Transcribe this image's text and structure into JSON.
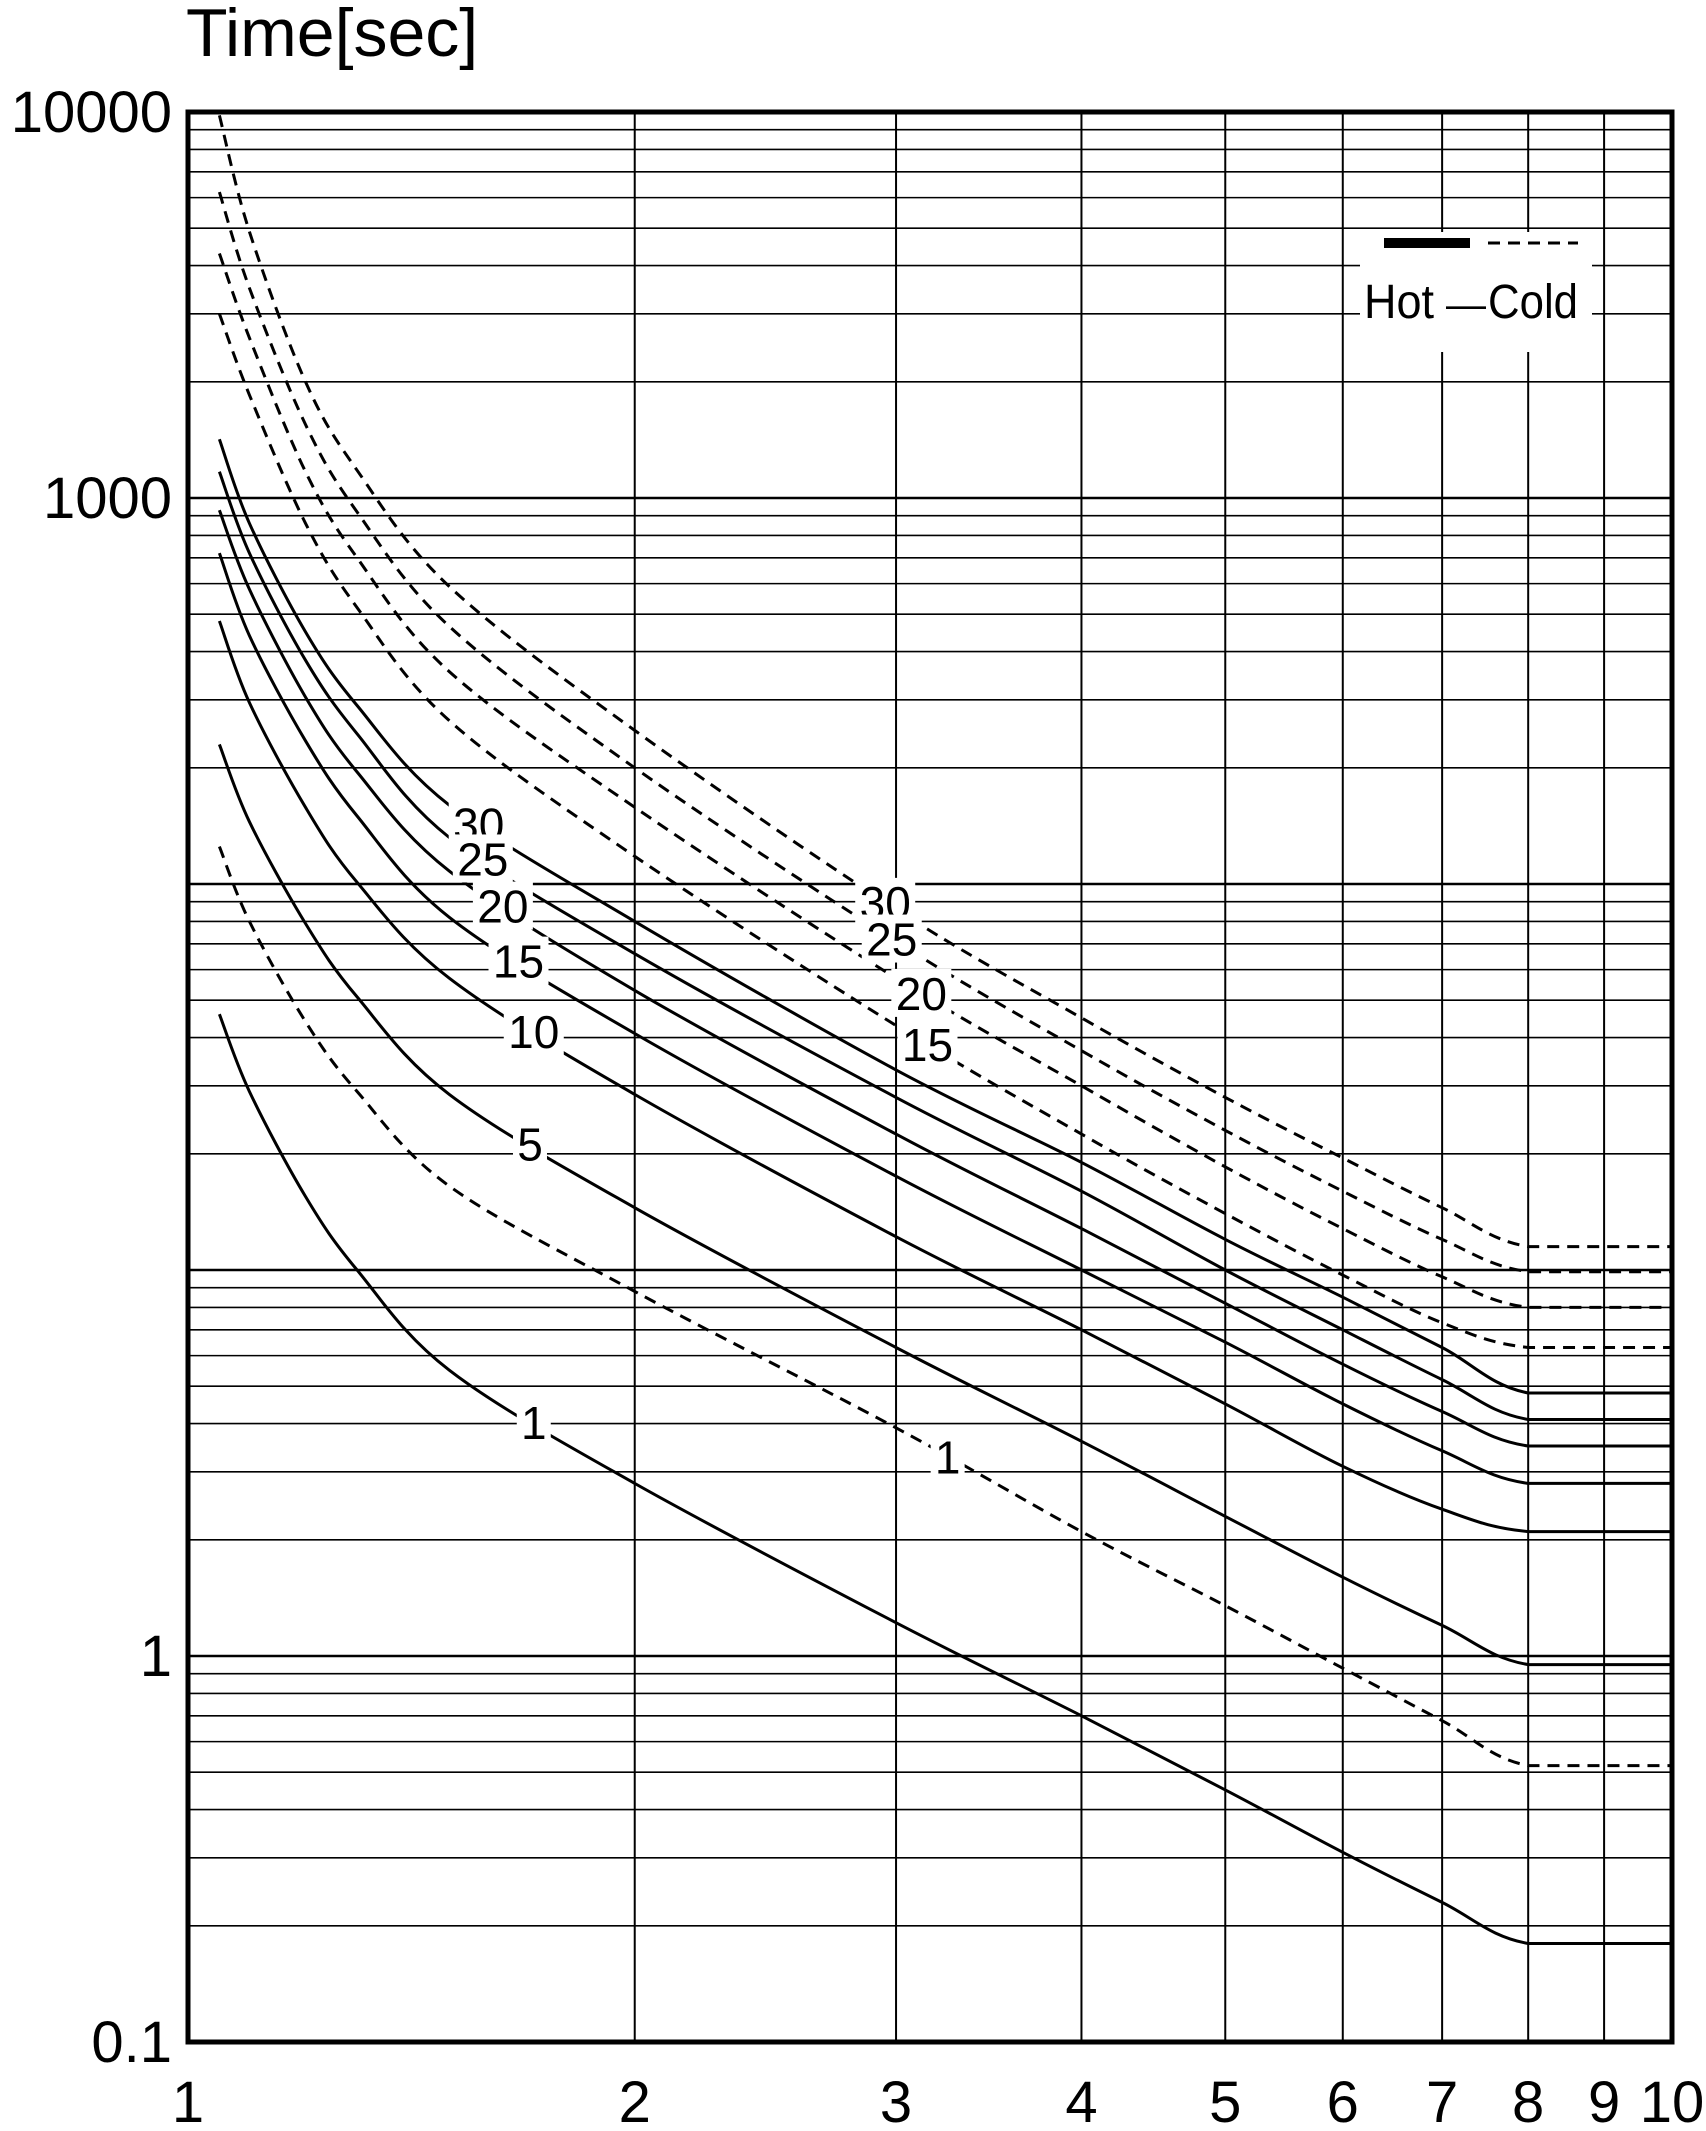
{
  "chart_data": {
    "type": "line",
    "title": "",
    "xlabel": "",
    "ylabel": "Time[sec]",
    "xscale": "log",
    "yscale": "log",
    "xlim": [
      1,
      10
    ],
    "ylim": [
      0.1,
      10000
    ],
    "grid": true,
    "x_ticks": [
      "1",
      "2",
      "3",
      "4",
      "5",
      "6",
      "7",
      "8",
      "9",
      "10"
    ],
    "y_ticks": [
      "0.1",
      "1",
      "1000",
      "10000"
    ],
    "legend": {
      "placement": "top-right",
      "entries": [
        {
          "label": "Hot",
          "style": "solid"
        },
        {
          "label": "Cold",
          "style": "dashed"
        }
      ],
      "separator": "—"
    },
    "colors": {
      "line": "#000000",
      "background": "#ffffff"
    },
    "series": [
      {
        "name": "30",
        "style": "solid",
        "label_x": 1.57,
        "points": [
          [
            1.05,
            1420
          ],
          [
            1.1,
            860
          ],
          [
            1.2,
            450
          ],
          [
            1.3,
            290
          ],
          [
            1.5,
            160
          ],
          [
            2,
            80
          ],
          [
            3,
            33
          ],
          [
            4,
            19
          ],
          [
            5,
            12
          ],
          [
            6,
            8.5
          ],
          [
            7,
            6.3
          ],
          [
            8,
            4.8
          ],
          [
            10,
            4.8
          ]
        ]
      },
      {
        "name": "25",
        "style": "solid",
        "label_x": 1.58,
        "points": [
          [
            1.05,
            1170
          ],
          [
            1.1,
            720
          ],
          [
            1.2,
            380
          ],
          [
            1.3,
            245
          ],
          [
            1.5,
            132
          ],
          [
            2,
            66
          ],
          [
            3,
            28
          ],
          [
            4,
            16
          ],
          [
            5,
            10
          ],
          [
            6,
            7
          ],
          [
            7,
            5.2
          ],
          [
            8,
            4.1
          ],
          [
            10,
            4.1
          ]
        ]
      },
      {
        "name": "20",
        "style": "solid",
        "label_x": 1.63,
        "points": [
          [
            1.05,
            930
          ],
          [
            1.1,
            580
          ],
          [
            1.2,
            305
          ],
          [
            1.3,
            195
          ],
          [
            1.5,
            108
          ],
          [
            2,
            53
          ],
          [
            3,
            22.5
          ],
          [
            4,
            12.8
          ],
          [
            5,
            8.2
          ],
          [
            6,
            5.7
          ],
          [
            7,
            4.3
          ],
          [
            8,
            3.5
          ],
          [
            10,
            3.5
          ]
        ]
      },
      {
        "name": "15",
        "style": "solid",
        "label_x": 1.67,
        "points": [
          [
            1.05,
            720
          ],
          [
            1.1,
            440
          ],
          [
            1.2,
            235
          ],
          [
            1.3,
            150
          ],
          [
            1.5,
            82
          ],
          [
            2,
            41
          ],
          [
            3,
            17.5
          ],
          [
            4,
            10
          ],
          [
            5,
            6.5
          ],
          [
            6,
            4.5
          ],
          [
            7,
            3.4
          ],
          [
            8,
            2.8
          ],
          [
            10,
            2.8
          ]
        ]
      },
      {
        "name": "10",
        "style": "solid",
        "label_x": 1.71,
        "points": [
          [
            1.05,
            480
          ],
          [
            1.1,
            295
          ],
          [
            1.2,
            158
          ],
          [
            1.3,
            101
          ],
          [
            1.5,
            57
          ],
          [
            2,
            28.5
          ],
          [
            3,
            12.2
          ],
          [
            4,
            7
          ],
          [
            5,
            4.5
          ],
          [
            6,
            3.1
          ],
          [
            7,
            2.4
          ],
          [
            8,
            2.1
          ],
          [
            10,
            2.1
          ]
        ]
      },
      {
        "name": "5",
        "style": "solid",
        "label_x": 1.7,
        "points": [
          [
            1.05,
            230
          ],
          [
            1.1,
            145
          ],
          [
            1.2,
            79
          ],
          [
            1.3,
            51
          ],
          [
            1.5,
            28.5
          ],
          [
            2,
            14.5
          ],
          [
            3,
            6.3
          ],
          [
            4,
            3.6
          ],
          [
            5,
            2.3
          ],
          [
            6,
            1.6
          ],
          [
            7,
            1.2
          ],
          [
            8,
            0.95
          ],
          [
            10,
            0.95
          ]
        ]
      },
      {
        "name": "1",
        "style": "solid",
        "label_x": 1.71,
        "points": [
          [
            1.05,
            46
          ],
          [
            1.1,
            29
          ],
          [
            1.2,
            15.5
          ],
          [
            1.3,
            10
          ],
          [
            1.5,
            5.5
          ],
          [
            2,
            2.8
          ],
          [
            3,
            1.22
          ],
          [
            4,
            0.7
          ],
          [
            5,
            0.45
          ],
          [
            6,
            0.31
          ],
          [
            7,
            0.23
          ],
          [
            8,
            0.18
          ],
          [
            10,
            0.18
          ]
        ]
      },
      {
        "name": "30",
        "style": "dashed",
        "label_x": 2.95,
        "points": [
          [
            1.05,
            9800
          ],
          [
            1.1,
            4900
          ],
          [
            1.2,
            2000
          ],
          [
            1.3,
            1180
          ],
          [
            1.5,
            590
          ],
          [
            2,
            250
          ],
          [
            3,
            86
          ],
          [
            4,
            45
          ],
          [
            5,
            28
          ],
          [
            6,
            19.5
          ],
          [
            7,
            14.5
          ],
          [
            8,
            11.5
          ],
          [
            10,
            11.5
          ]
        ]
      },
      {
        "name": "25",
        "style": "dashed",
        "label_x": 2.98,
        "points": [
          [
            1.05,
            6200
          ],
          [
            1.1,
            3500
          ],
          [
            1.2,
            1550
          ],
          [
            1.3,
            920
          ],
          [
            1.5,
            465
          ],
          [
            2,
            200
          ],
          [
            3,
            71
          ],
          [
            4,
            37
          ],
          [
            5,
            23
          ],
          [
            6,
            16
          ],
          [
            7,
            12
          ],
          [
            8,
            9.9
          ],
          [
            10,
            9.9
          ]
        ]
      },
      {
        "name": "20",
        "style": "dashed",
        "label_x": 3.12,
        "points": [
          [
            1.05,
            4300
          ],
          [
            1.1,
            2600
          ],
          [
            1.2,
            1170
          ],
          [
            1.3,
            700
          ],
          [
            1.5,
            355
          ],
          [
            2,
            158
          ],
          [
            3,
            57
          ],
          [
            4,
            30
          ],
          [
            5,
            18.5
          ],
          [
            6,
            12.8
          ],
          [
            7,
            9.6
          ],
          [
            8,
            8
          ],
          [
            10,
            8
          ]
        ]
      },
      {
        "name": "15",
        "style": "dashed",
        "label_x": 3.15,
        "points": [
          [
            1.05,
            3000
          ],
          [
            1.1,
            1850
          ],
          [
            1.2,
            860
          ],
          [
            1.3,
            520
          ],
          [
            1.5,
            265
          ],
          [
            2,
            118
          ],
          [
            3,
            43
          ],
          [
            4,
            22.5
          ],
          [
            5,
            14
          ],
          [
            6,
            9.7
          ],
          [
            7,
            7.3
          ],
          [
            8,
            6.3
          ],
          [
            10,
            6.3
          ]
        ]
      },
      {
        "name": "1",
        "style": "dashed",
        "label_x": 3.25,
        "points": [
          [
            1.05,
            125
          ],
          [
            1.1,
            80
          ],
          [
            1.2,
            44
          ],
          [
            1.3,
            29
          ],
          [
            1.5,
            16.5
          ],
          [
            2,
            8.8
          ],
          [
            3,
            3.9
          ],
          [
            4,
            2.1
          ],
          [
            5,
            1.35
          ],
          [
            6,
            0.93
          ],
          [
            7,
            0.68
          ],
          [
            8,
            0.52
          ],
          [
            10,
            0.52
          ]
        ]
      }
    ]
  }
}
